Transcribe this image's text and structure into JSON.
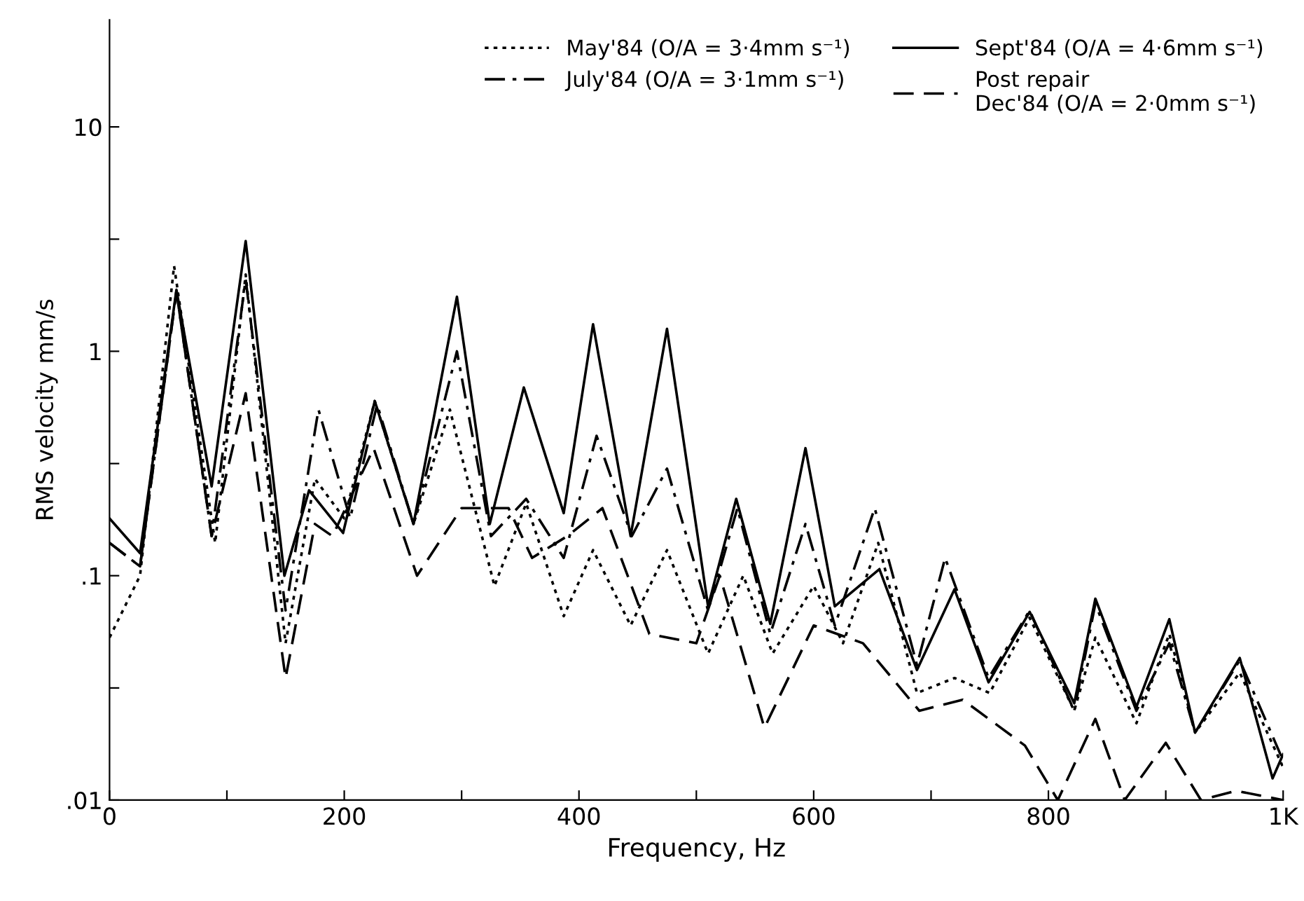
{
  "chart_data": {
    "type": "line",
    "xlabel": "Frequency, Hz",
    "ylabel": "RMS velocity mm/s",
    "log": "y",
    "grid": false,
    "legend": "top right",
    "marker": "none",
    "xlim": [
      0,
      1000
    ],
    "xticks": [
      0,
      {
        "value": 100,
        "label": null
      },
      200,
      {
        "value": 300,
        "label": null
      },
      400,
      {
        "value": 500,
        "label": null
      },
      600,
      {
        "value": 700,
        "label": null
      },
      800,
      {
        "value": 900,
        "label": null
      },
      {
        "value": 1000,
        "label": "1K"
      }
    ],
    "ylim": [
      0.01,
      30
    ],
    "yticks": [
      {
        "value": 0.01,
        "label": ".01"
      },
      {
        "value": 0.0316,
        "label": null
      },
      {
        "value": 0.1,
        "label": ".1"
      },
      {
        "value": 0.316,
        "label": null
      },
      1,
      {
        "value": 3.16,
        "label": null
      },
      10
    ],
    "series": [
      {
        "name": "May'84 (O/A = 3·4mm s⁻¹)",
        "color": "#000000",
        "line_style": "dotted",
        "x": [
          0,
          26,
          55,
          90,
          116,
          150,
          175,
          200,
          226,
          259,
          290,
          328,
          355,
          387,
          412,
          444,
          475,
          510,
          540,
          565,
          600,
          625,
          655,
          688,
          720,
          750,
          784,
          822,
          840,
          875,
          903,
          925,
          963,
          1000
        ],
        "values": [
          0.053,
          0.1,
          2.4,
          0.14,
          2.2,
          0.05,
          0.27,
          0.18,
          0.6,
          0.17,
          0.55,
          0.09,
          0.21,
          0.066,
          0.13,
          0.06,
          0.13,
          0.045,
          0.1,
          0.045,
          0.09,
          0.05,
          0.14,
          0.03,
          0.035,
          0.03,
          0.065,
          0.025,
          0.053,
          0.022,
          0.055,
          0.02,
          0.037,
          0.014
        ]
      },
      {
        "name": "July'84 (O/A = 3·1mm s⁻¹)",
        "color": "#000000",
        "line_style": "dashdot",
        "x": [
          0,
          26,
          57,
          87,
          116,
          150,
          178,
          205,
          228,
          259,
          296,
          325,
          355,
          387,
          415,
          445,
          475,
          510,
          535,
          563,
          593,
          618,
          652,
          688,
          712,
          749,
          784,
          822,
          840,
          875,
          903,
          925,
          963,
          1000
        ],
        "values": [
          0.14,
          0.11,
          1.85,
          0.15,
          2.1,
          0.07,
          0.55,
          0.18,
          0.58,
          0.17,
          1.0,
          0.15,
          0.22,
          0.12,
          0.42,
          0.15,
          0.3,
          0.07,
          0.2,
          0.055,
          0.17,
          0.06,
          0.2,
          0.04,
          0.12,
          0.035,
          0.07,
          0.025,
          0.075,
          0.025,
          0.05,
          0.02,
          0.042,
          0.015
        ]
      },
      {
        "name": "Sept'84 (O/A = 4·6mm s⁻¹)",
        "color": "#000000",
        "line_style": "solid",
        "x": [
          0,
          26,
          57,
          87,
          116,
          149,
          170,
          199,
          226,
          259,
          296,
          324,
          353,
          387,
          412,
          444,
          475,
          510,
          534,
          563,
          593,
          618,
          656,
          688,
          720,
          749,
          784,
          822,
          840,
          875,
          903,
          925,
          963,
          991,
          1000
        ],
        "values": [
          0.18,
          0.126,
          1.88,
          0.25,
          3.1,
          0.1,
          0.24,
          0.155,
          0.6,
          0.17,
          1.75,
          0.17,
          0.69,
          0.19,
          1.32,
          0.15,
          1.26,
          0.073,
          0.22,
          0.061,
          0.37,
          0.073,
          0.107,
          0.038,
          0.087,
          0.0335,
          0.069,
          0.027,
          0.079,
          0.026,
          0.064,
          0.02,
          0.043,
          0.0125,
          0.016
        ]
      },
      {
        "name": "Post repair\nDec'84 (O/A = 2·0mm s⁻¹)",
        "color": "#000000",
        "line_style": "dashed",
        "x": [
          0,
          26,
          57,
          87,
          116,
          150,
          175,
          190,
          225,
          262,
          300,
          340,
          360,
          390,
          420,
          460,
          500,
          520,
          558,
          600,
          642,
          690,
          727,
          780,
          808,
          840,
          865,
          900,
          930,
          960,
          1000
        ],
        "values": [
          0.14,
          0.11,
          1.85,
          0.15,
          0.65,
          0.035,
          0.17,
          0.15,
          0.37,
          0.1,
          0.2,
          0.2,
          0.12,
          0.15,
          0.2,
          0.055,
          0.05,
          0.1,
          0.021,
          0.06,
          0.05,
          0.025,
          0.028,
          0.0175,
          0.01,
          0.023,
          0.01,
          0.018,
          0.01,
          0.011,
          0.01
        ]
      }
    ]
  }
}
